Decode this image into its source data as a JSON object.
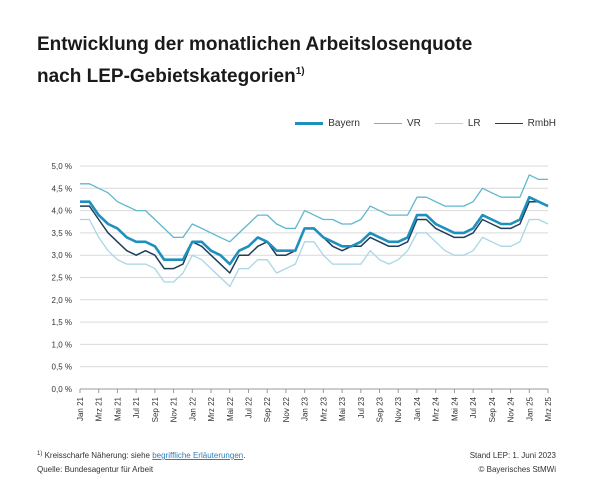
{
  "header": {
    "title_line1": "Entwicklung der monatlichen Arbeitslosenquote",
    "title_line2": "nach LEP-Gebietskategorien",
    "title_sup": "1)"
  },
  "footer": {
    "note_marker": "1)",
    "note_text": "Kreisscharfe Näherung: siehe ",
    "note_link": "begriffliche Erläuterungen",
    "note_end": ".",
    "source": "Quelle: Bundesagentur für Arbeit",
    "stand": "Stand LEP: 1. Juni 2023",
    "copyright": "© Bayerisches StMWi"
  },
  "chart_data": {
    "type": "line",
    "title": "Entwicklung der monatlichen Arbeitslosenquote nach LEP-Gebietskategorien",
    "ylim": [
      0,
      5
    ],
    "yticks": [
      0,
      0.5,
      1,
      1.5,
      2,
      2.5,
      3,
      3.5,
      4,
      4.5,
      5
    ],
    "ytick_labels": [
      "0,0 %",
      "0,5 %",
      "1,0 %",
      "1,5 %",
      "2,0 %",
      "2,5 %",
      "3,0 %",
      "3,5 %",
      "4,0 %",
      "4,5 %",
      "5,0 %"
    ],
    "grid": true,
    "legend_position": "top-right",
    "x_tick_labels": [
      "Jan 21",
      "Mrz 21",
      "Mai 21",
      "Jul 21",
      "Sep 21",
      "Nov 21",
      "Jan 22",
      "Mrz 22",
      "Mai 22",
      "Jul 22",
      "Sep 22",
      "Nov 22",
      "Jan 23",
      "Mrz 23",
      "Mai 23",
      "Jul 23",
      "Sep 23",
      "Nov 23",
      "Jan 24",
      "Mrz 24",
      "Mai 24",
      "Jul 24",
      "Sep 24",
      "Nov 24",
      "Jan 25",
      "Mrz 25"
    ],
    "months_count": 51,
    "series": [
      {
        "name": "VR",
        "color": "#5fb7d0",
        "values": [
          4.6,
          4.6,
          4.5,
          4.4,
          4.2,
          4.1,
          4.0,
          4.0,
          3.8,
          3.6,
          3.4,
          3.4,
          3.7,
          3.6,
          3.5,
          3.4,
          3.3,
          3.5,
          3.7,
          3.9,
          3.9,
          3.7,
          3.6,
          3.6,
          4.0,
          3.9,
          3.8,
          3.8,
          3.7,
          3.7,
          3.8,
          4.1,
          4.0,
          3.9,
          3.9,
          3.9,
          4.3,
          4.3,
          4.2,
          4.1,
          4.1,
          4.1,
          4.2,
          4.5,
          4.4,
          4.3,
          4.3,
          4.3,
          4.8,
          4.7,
          4.7
        ]
      },
      {
        "name": "LR",
        "color": "#a9d6e5",
        "values": [
          3.8,
          3.8,
          3.4,
          3.1,
          2.9,
          2.8,
          2.8,
          2.8,
          2.7,
          2.4,
          2.4,
          2.6,
          3.0,
          2.9,
          2.7,
          2.5,
          2.3,
          2.7,
          2.7,
          2.9,
          2.9,
          2.6,
          2.7,
          2.8,
          3.3,
          3.3,
          3.0,
          2.8,
          2.8,
          2.8,
          2.8,
          3.1,
          2.9,
          2.8,
          2.9,
          3.1,
          3.5,
          3.5,
          3.3,
          3.1,
          3.0,
          3.0,
          3.1,
          3.4,
          3.3,
          3.2,
          3.2,
          3.3,
          3.8,
          3.8,
          3.7
        ]
      },
      {
        "name": "RmbH",
        "color": "#1e3f5a",
        "values": [
          4.1,
          4.1,
          3.8,
          3.5,
          3.3,
          3.1,
          3.0,
          3.1,
          3.0,
          2.7,
          2.7,
          2.8,
          3.3,
          3.2,
          3.0,
          2.8,
          2.6,
          3.0,
          3.0,
          3.2,
          3.3,
          3.0,
          3.0,
          3.1,
          3.6,
          3.6,
          3.4,
          3.2,
          3.1,
          3.2,
          3.2,
          3.4,
          3.3,
          3.2,
          3.2,
          3.3,
          3.8,
          3.8,
          3.6,
          3.5,
          3.4,
          3.4,
          3.5,
          3.8,
          3.7,
          3.6,
          3.6,
          3.7,
          4.2,
          4.2,
          4.1
        ]
      },
      {
        "name": "Bayern",
        "color": "#1f8fbd",
        "values": [
          4.2,
          4.2,
          3.9,
          3.7,
          3.6,
          3.4,
          3.3,
          3.3,
          3.2,
          2.9,
          2.9,
          2.9,
          3.3,
          3.3,
          3.1,
          3.0,
          2.8,
          3.1,
          3.2,
          3.4,
          3.3,
          3.1,
          3.1,
          3.1,
          3.6,
          3.6,
          3.4,
          3.3,
          3.2,
          3.2,
          3.3,
          3.5,
          3.4,
          3.3,
          3.3,
          3.4,
          3.9,
          3.9,
          3.7,
          3.6,
          3.5,
          3.5,
          3.6,
          3.9,
          3.8,
          3.7,
          3.7,
          3.8,
          4.3,
          4.2,
          4.1
        ]
      }
    ],
    "legend_order": [
      "Bayern",
      "VR",
      "LR",
      "RmbH"
    ]
  }
}
